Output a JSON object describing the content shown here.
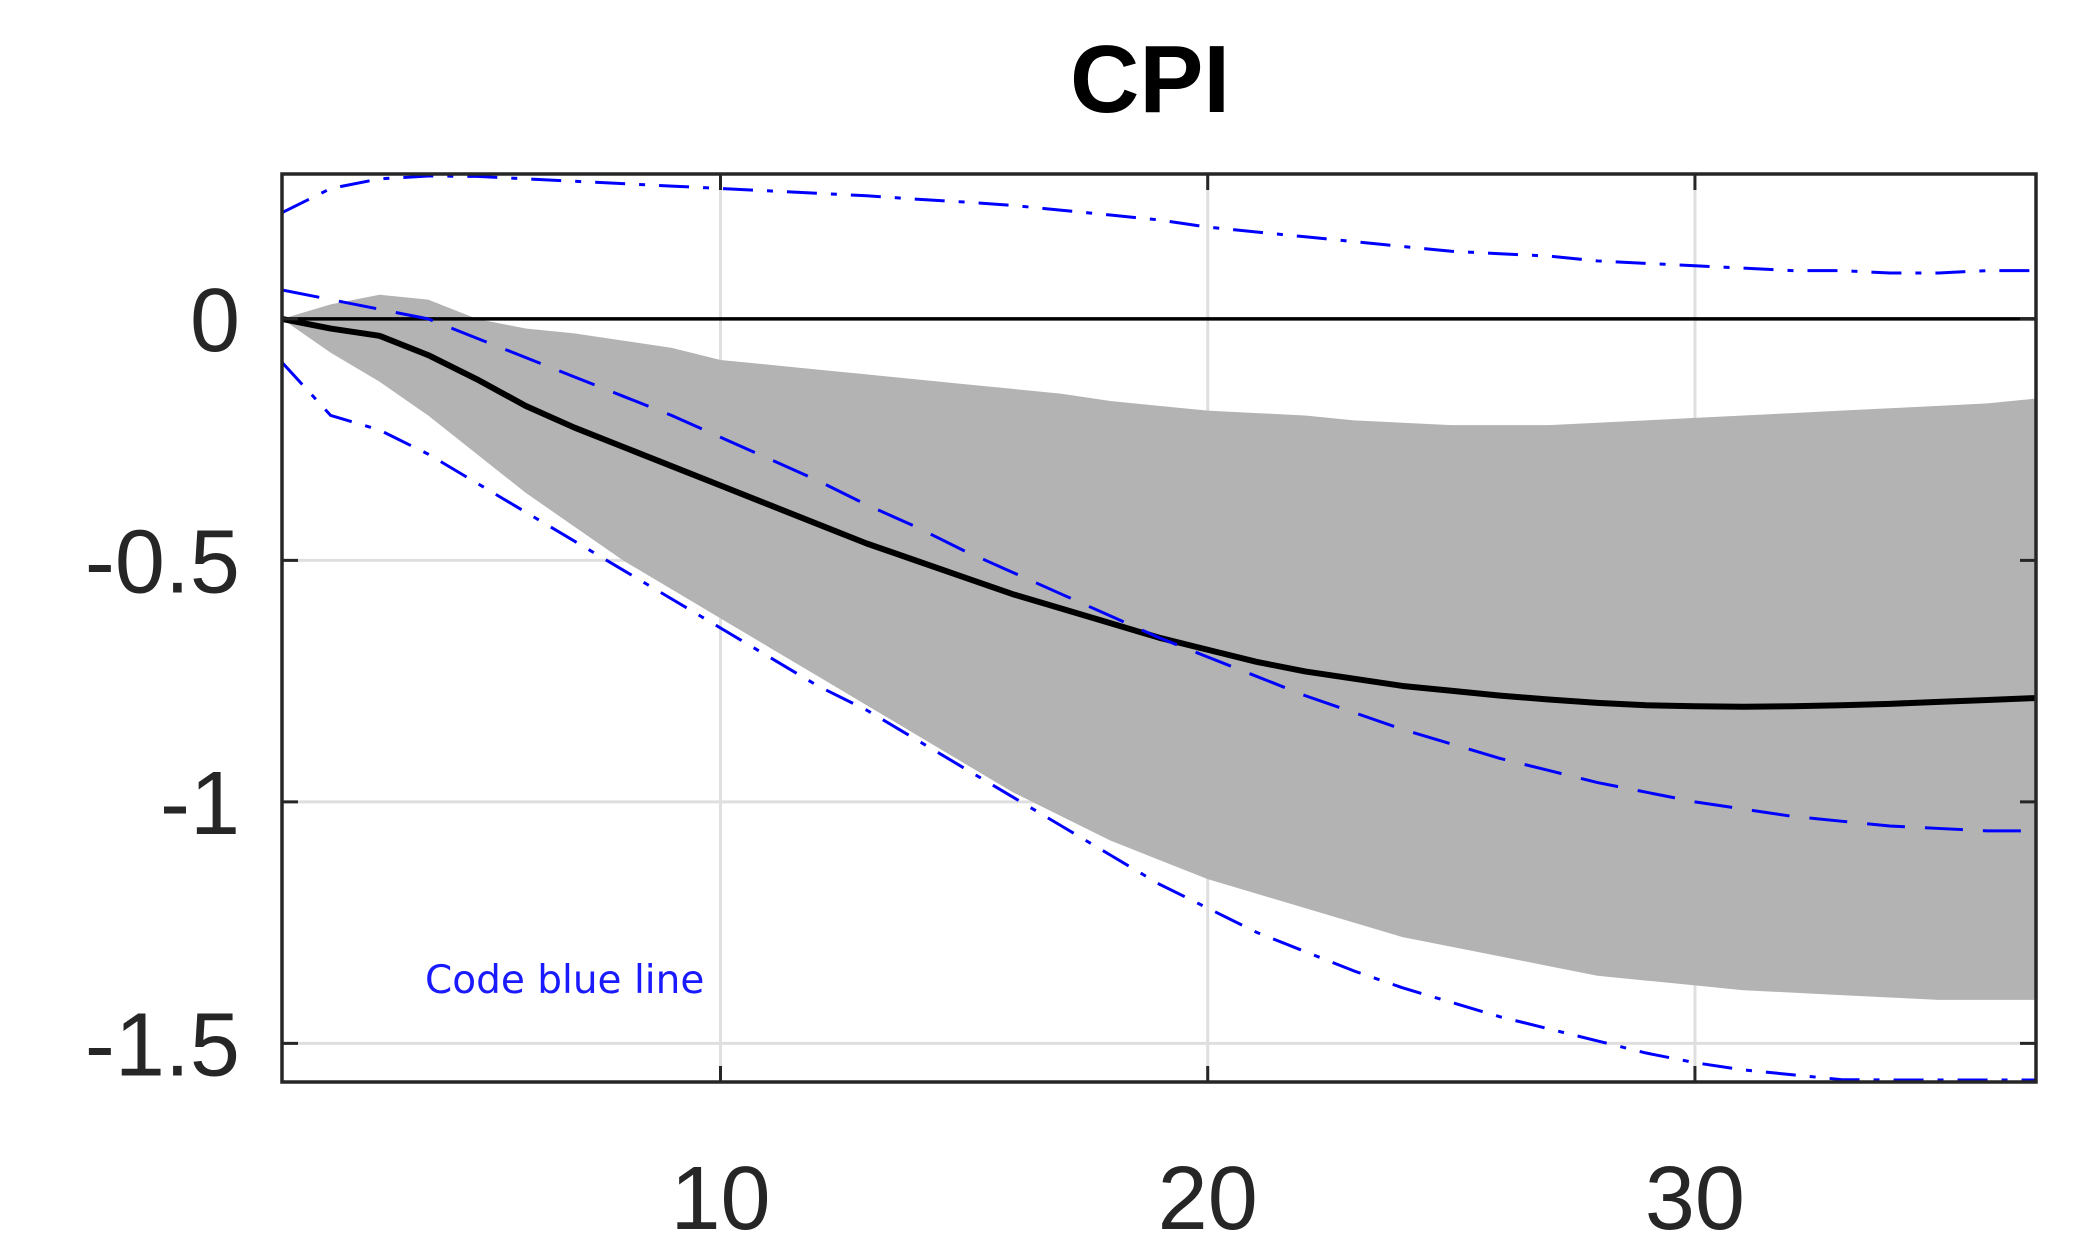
{
  "chart_data": {
    "type": "line",
    "title": "CPI",
    "xlabel": "",
    "ylabel": "",
    "xlim": [
      1,
      37
    ],
    "ylim": [
      -1.58,
      0.3
    ],
    "xticks": [
      10,
      20,
      30
    ],
    "yticks": [
      0,
      -0.5,
      -1,
      -1.5
    ],
    "xtick_labels": [
      "10",
      "20",
      "30"
    ],
    "ytick_labels": [
      "0",
      "-0.5",
      "-1",
      "-1.5"
    ],
    "grid": true,
    "zero_line": 0,
    "annotation": "Code blue line",
    "colors": {
      "band": "#b3b3b3",
      "mean": "#000000",
      "blue": "#0000ff",
      "grid": "#dfdfdf",
      "axes": "#262626"
    },
    "x": [
      1,
      2,
      3,
      4,
      5,
      6,
      7,
      8,
      9,
      10,
      11,
      12,
      13,
      14,
      15,
      16,
      17,
      18,
      19,
      20,
      21,
      22,
      23,
      24,
      25,
      26,
      27,
      28,
      29,
      30,
      31,
      32,
      33,
      34,
      35,
      36,
      37
    ],
    "band_upper": [
      0.0,
      0.03,
      0.05,
      0.04,
      0.0,
      -0.02,
      -0.03,
      -0.045,
      -0.06,
      -0.085,
      -0.095,
      -0.105,
      -0.115,
      -0.125,
      -0.135,
      -0.145,
      -0.155,
      -0.17,
      -0.18,
      -0.19,
      -0.195,
      -0.2,
      -0.21,
      -0.215,
      -0.22,
      -0.22,
      -0.22,
      -0.215,
      -0.21,
      -0.205,
      -0.2,
      -0.195,
      -0.19,
      -0.185,
      -0.18,
      -0.175,
      -0.165
    ],
    "band_lower": [
      0.0,
      -0.07,
      -0.13,
      -0.2,
      -0.28,
      -0.36,
      -0.43,
      -0.5,
      -0.56,
      -0.62,
      -0.68,
      -0.74,
      -0.8,
      -0.86,
      -0.92,
      -0.98,
      -1.03,
      -1.08,
      -1.12,
      -1.16,
      -1.19,
      -1.22,
      -1.25,
      -1.28,
      -1.3,
      -1.32,
      -1.34,
      -1.36,
      -1.37,
      -1.38,
      -1.39,
      -1.395,
      -1.4,
      -1.405,
      -1.41,
      -1.41,
      -1.41
    ],
    "series": [
      {
        "style": "solid",
        "values": [
          0.0,
          -0.02,
          -0.035,
          -0.075,
          -0.125,
          -0.18,
          -0.225,
          -0.265,
          -0.305,
          -0.345,
          -0.385,
          -0.425,
          -0.465,
          -0.5,
          -0.535,
          -0.57,
          -0.6,
          -0.63,
          -0.66,
          -0.685,
          -0.71,
          -0.73,
          -0.745,
          -0.76,
          -0.77,
          -0.78,
          -0.788,
          -0.795,
          -0.8,
          -0.802,
          -0.803,
          -0.802,
          -0.8,
          -0.797,
          -0.793,
          -0.789,
          -0.785
        ]
      },
      {
        "style": "dashed",
        "values": [
          0.06,
          0.04,
          0.02,
          0.0,
          -0.04,
          -0.08,
          -0.12,
          -0.16,
          -0.2,
          -0.245,
          -0.29,
          -0.335,
          -0.385,
          -0.43,
          -0.48,
          -0.525,
          -0.57,
          -0.615,
          -0.66,
          -0.7,
          -0.74,
          -0.78,
          -0.815,
          -0.85,
          -0.88,
          -0.91,
          -0.935,
          -0.96,
          -0.98,
          -1.0,
          -1.015,
          -1.03,
          -1.04,
          -1.05,
          -1.055,
          -1.06,
          -1.06
        ]
      },
      {
        "style": "dash-dot",
        "values": [
          0.22,
          0.27,
          0.29,
          0.3,
          0.295,
          0.29,
          0.285,
          0.28,
          0.275,
          0.27,
          0.265,
          0.26,
          0.255,
          0.248,
          0.242,
          0.235,
          0.225,
          0.215,
          0.205,
          0.19,
          0.18,
          0.17,
          0.16,
          0.15,
          0.14,
          0.135,
          0.13,
          0.12,
          0.115,
          0.11,
          0.105,
          0.1,
          0.1,
          0.095,
          0.095,
          0.1,
          0.1
        ]
      },
      {
        "style": "dash-dot",
        "values": [
          -0.09,
          -0.2,
          -0.23,
          -0.28,
          -0.34,
          -0.4,
          -0.46,
          -0.52,
          -0.58,
          -0.64,
          -0.7,
          -0.76,
          -0.81,
          -0.87,
          -0.93,
          -0.99,
          -1.05,
          -1.11,
          -1.17,
          -1.22,
          -1.27,
          -1.31,
          -1.35,
          -1.385,
          -1.415,
          -1.445,
          -1.47,
          -1.495,
          -1.52,
          -1.54,
          -1.555,
          -1.565,
          -1.575,
          -1.58,
          -1.585,
          -1.585,
          -1.585
        ]
      }
    ]
  }
}
